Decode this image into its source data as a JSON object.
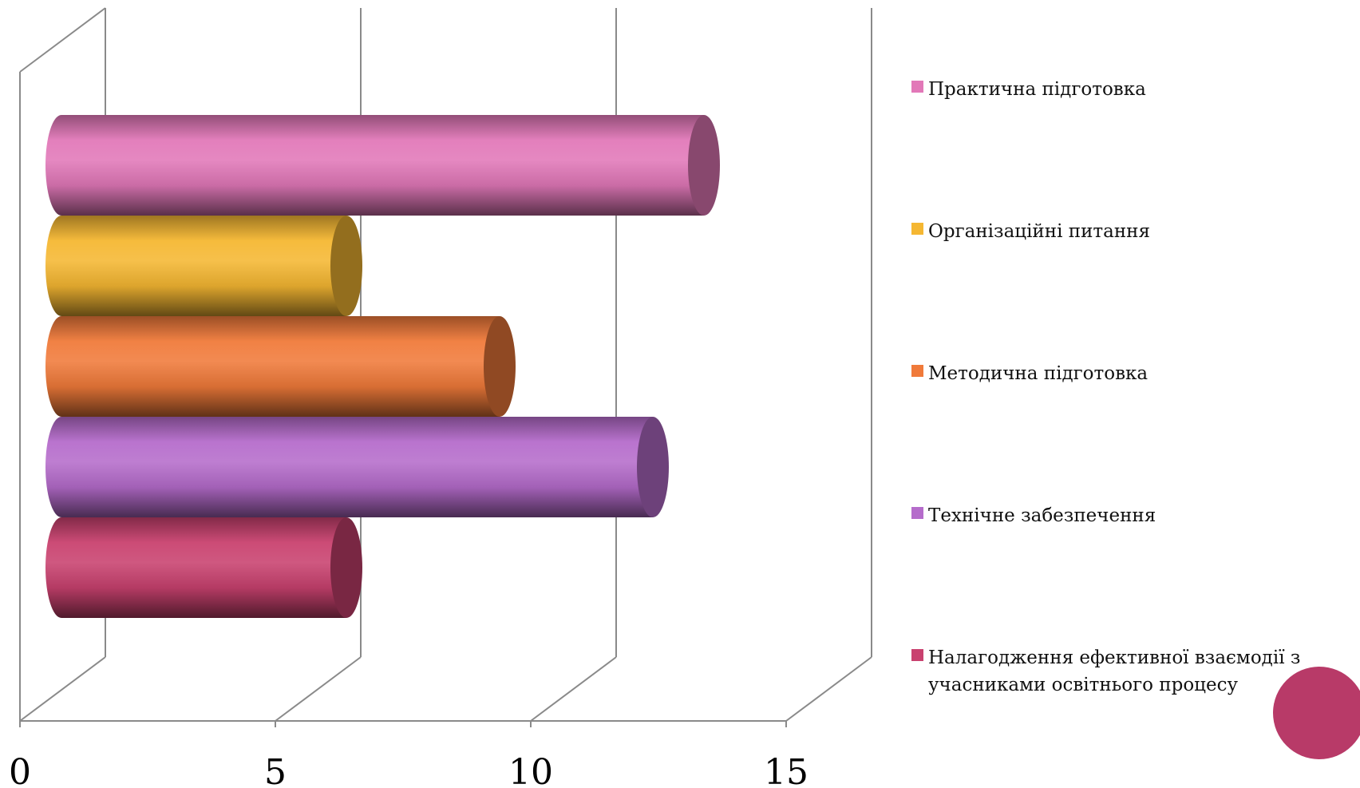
{
  "chart_data": {
    "type": "bar",
    "orientation": "horizontal",
    "style": "3d-cylinder",
    "title": "",
    "xlabel": "",
    "ylabel": "",
    "xlim": [
      0,
      15
    ],
    "x_ticks": [
      "0",
      "5",
      "10",
      "15"
    ],
    "grid": true,
    "legend_position": "right",
    "series": [
      {
        "name": "Практична підготовка",
        "value": 12.5,
        "color": "#E278B8"
      },
      {
        "name": "Організаційні питання",
        "value": 5.5,
        "color": "#F5B732"
      },
      {
        "name": "Методична підготовка",
        "value": 8.5,
        "color": "#F07A3A"
      },
      {
        "name": "Технічне забезпечення",
        "value": 11.5,
        "color": "#B56CCB"
      },
      {
        "name": "Налагодження ефективної взаємодії з учасниками освітнього процесу",
        "value": 5.5,
        "color": "#C9416F"
      }
    ]
  },
  "decoration": {
    "circle_color": "#B83A68"
  }
}
